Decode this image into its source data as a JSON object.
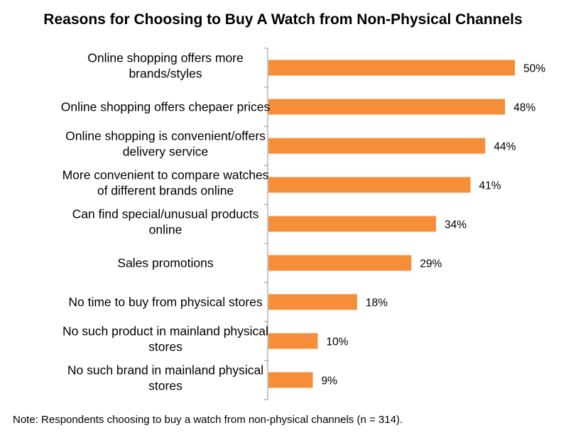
{
  "chart_data": {
    "type": "bar",
    "orientation": "horizontal",
    "title": "Reasons for Choosing to Buy A Watch from Non-Physical Channels",
    "categories": [
      [
        "Online shopping offers more",
        "brands/styles"
      ],
      [
        "Online shopping offers chepaer prices"
      ],
      [
        "Online shopping is convenient/offers",
        "delivery service"
      ],
      [
        "More convenient to compare watches",
        "of different brands online"
      ],
      [
        "Can find special/unusual products",
        "online"
      ],
      [
        "Sales promotions"
      ],
      [
        "No time to buy from physical stores"
      ],
      [
        "No such product in mainland physical",
        "stores"
      ],
      [
        "No such brand in mainland physical",
        "stores"
      ]
    ],
    "values": [
      50,
      48,
      44,
      41,
      34,
      29,
      18,
      10,
      9
    ],
    "value_labels": [
      "50%",
      "48%",
      "44%",
      "41%",
      "34%",
      "29%",
      "18%",
      "10%",
      "9%"
    ],
    "unit": "%",
    "xlim": [
      0,
      50
    ],
    "bar_color": "#F68D39",
    "grid": false,
    "legend": "none",
    "note": "Note: Respondents choosing to buy a watch from non-physical channels (n = 314)."
  }
}
